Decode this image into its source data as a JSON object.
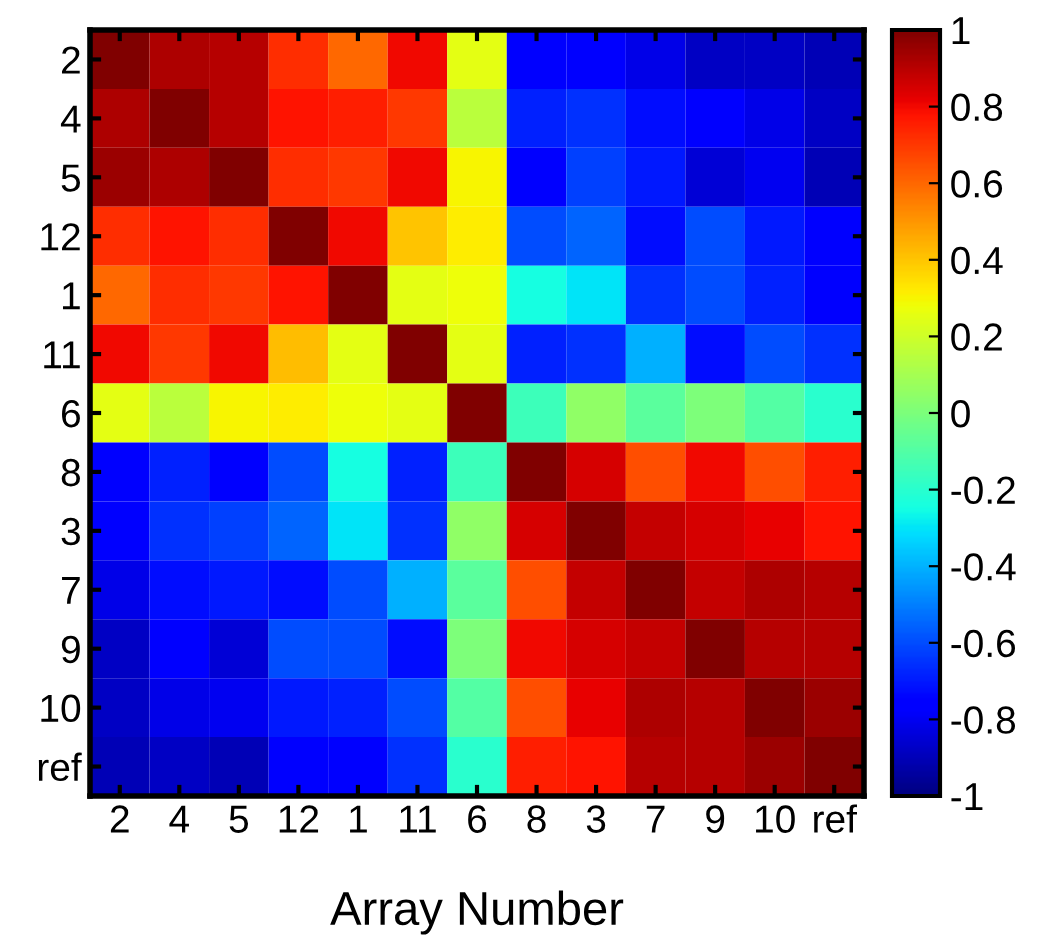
{
  "chart_data": {
    "type": "heatmap",
    "xlabel": "Array Number",
    "categories": [
      "2",
      "4",
      "5",
      "12",
      "1",
      "11",
      "6",
      "8",
      "3",
      "7",
      "9",
      "10",
      "ref"
    ],
    "y_categories": [
      "2",
      "4",
      "5",
      "12",
      "1",
      "11",
      "6",
      "8",
      "3",
      "7",
      "9",
      "10",
      "ref"
    ],
    "cells": [
      [
        1,
        0.92,
        0.9,
        0.72,
        0.6,
        0.8,
        0.25,
        -0.78,
        -0.75,
        -0.82,
        -0.88,
        -0.88,
        -0.9
      ],
      [
        0.92,
        1,
        0.9,
        0.78,
        0.75,
        0.7,
        0.15,
        -0.68,
        -0.65,
        -0.72,
        -0.78,
        -0.82,
        -0.88
      ],
      [
        0.95,
        0.92,
        1,
        0.72,
        0.7,
        0.8,
        0.3,
        -0.76,
        -0.62,
        -0.7,
        -0.85,
        -0.8,
        -0.9
      ],
      [
        0.72,
        0.78,
        0.72,
        1,
        0.8,
        0.4,
        0.32,
        -0.6,
        -0.55,
        -0.72,
        -0.6,
        -0.7,
        -0.76
      ],
      [
        0.6,
        0.72,
        0.7,
        0.78,
        1,
        0.25,
        0.28,
        -0.25,
        -0.3,
        -0.65,
        -0.6,
        -0.68,
        -0.76
      ],
      [
        0.8,
        0.7,
        0.8,
        0.42,
        0.25,
        1,
        0.25,
        -0.68,
        -0.65,
        -0.4,
        -0.72,
        -0.6,
        -0.65
      ],
      [
        0.25,
        0.15,
        0.3,
        0.32,
        0.28,
        0.25,
        1,
        -0.15,
        0.05,
        -0.08,
        0,
        -0.1,
        -0.2
      ],
      [
        -0.78,
        -0.68,
        -0.76,
        -0.6,
        -0.25,
        -0.68,
        -0.15,
        1,
        0.85,
        0.65,
        0.8,
        0.65,
        0.75
      ],
      [
        -0.75,
        -0.65,
        -0.62,
        -0.55,
        -0.3,
        -0.65,
        0.05,
        0.85,
        1,
        0.88,
        0.85,
        0.82,
        0.78
      ],
      [
        -0.82,
        -0.72,
        -0.7,
        -0.72,
        -0.6,
        -0.4,
        -0.08,
        0.65,
        0.88,
        1,
        0.88,
        0.92,
        0.9
      ],
      [
        -0.88,
        -0.78,
        -0.85,
        -0.6,
        -0.6,
        -0.72,
        0,
        0.8,
        0.85,
        0.88,
        1,
        0.9,
        0.9
      ],
      [
        -0.88,
        -0.82,
        -0.8,
        -0.7,
        -0.68,
        -0.6,
        -0.1,
        0.65,
        0.82,
        0.92,
        0.9,
        1,
        0.95
      ],
      [
        -0.9,
        -0.88,
        -0.9,
        -0.76,
        -0.76,
        -0.65,
        -0.2,
        0.75,
        0.78,
        0.9,
        0.9,
        0.95,
        1
      ]
    ],
    "clim": [
      -1,
      1
    ],
    "cticks": [
      -1,
      -0.8,
      -0.6,
      -0.4,
      -0.2,
      0,
      0.2,
      0.4,
      0.6,
      0.8,
      1
    ]
  }
}
